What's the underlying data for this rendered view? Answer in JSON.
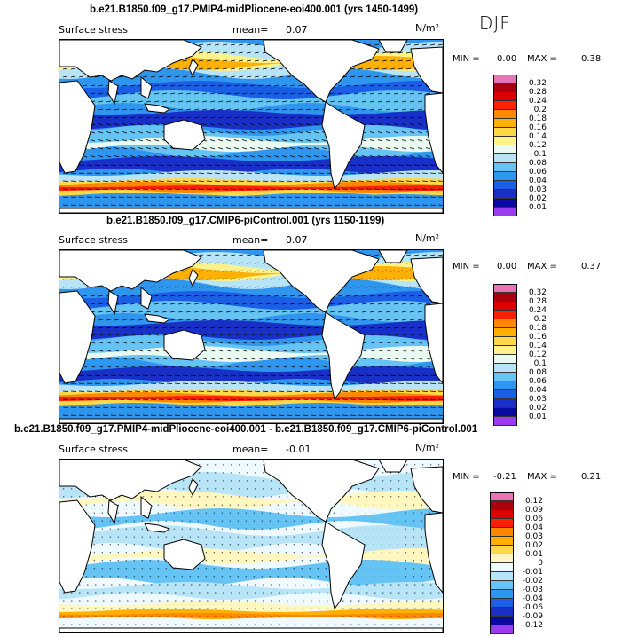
{
  "season": "DJF",
  "panels": [
    {
      "title": "b.e21.B1850.f09_g17.PMIP4-midPliocene-eoi400.001 (yrs 1450-1499)",
      "variable": "Surface stress",
      "mean_label": "mean=",
      "mean_value": "0.07",
      "units": "N/m²",
      "min_label": "MIN =",
      "min_value": "0.00",
      "max_label": "MAX =",
      "max_value": "0.38",
      "colorbar": [
        "0.32",
        "0.28",
        "0.24",
        "0.2",
        "0.18",
        "0.16",
        "0.14",
        "0.12",
        "0.1",
        "0.08",
        "0.06",
        "0.04",
        "0.03",
        "0.02",
        "0.01"
      ]
    },
    {
      "title": "b.e21.B1850.f09_g17.CMIP6-piControl.001 (yrs 1150-1199)",
      "variable": "Surface stress",
      "mean_label": "mean=",
      "mean_value": "0.07",
      "units": "N/m²",
      "min_label": "MIN =",
      "min_value": "0.00",
      "max_label": "MAX =",
      "max_value": "0.37",
      "colorbar": [
        "0.32",
        "0.28",
        "0.24",
        "0.2",
        "0.18",
        "0.16",
        "0.14",
        "0.12",
        "0.1",
        "0.08",
        "0.06",
        "0.04",
        "0.03",
        "0.02",
        "0.01"
      ]
    },
    {
      "title": "b.e21.B1850.f09_g17.PMIP4-midPliocene-eoi400.001 - b.e21.B1850.f09_g17.CMIP6-piControl.001",
      "variable": "Surface stress",
      "mean_label": "mean=",
      "mean_value": "-0.01",
      "units": "N/m²",
      "min_label": "MIN =",
      "min_value": "-0.21",
      "max_label": "MAX =",
      "max_value": "0.21",
      "colorbar": [
        "0.12",
        "0.09",
        "0.06",
        "0.04",
        "0.03",
        "0.02",
        "0.01",
        "0",
        "-0.01",
        "-0.02",
        "-0.03",
        "-0.04",
        "-0.06",
        "-0.09",
        "-0.12"
      ]
    }
  ],
  "colors": {
    "abs_scale": [
      "#e873b5",
      "#a80010",
      "#dd0000",
      "#ff2000",
      "#ff8800",
      "#ffb000",
      "#ffd84a",
      "#fff28a",
      "#eafaf0",
      "#b8e4f8",
      "#66c4f5",
      "#2f96f0",
      "#1a5fe6",
      "#1830c8",
      "#0a0aa0",
      "#9a3cf0"
    ],
    "diff_scale": [
      "#e873b5",
      "#a80010",
      "#dd0000",
      "#ff2000",
      "#ff8800",
      "#ffb000",
      "#ffd84a",
      "#fff6c0",
      "#eefaff",
      "#b8e4f8",
      "#66c4f5",
      "#2f96f0",
      "#1a5fe6",
      "#1830c8",
      "#0a0aa0",
      "#9a3cf0"
    ],
    "land": "#ffffff",
    "coast": "#000000"
  }
}
